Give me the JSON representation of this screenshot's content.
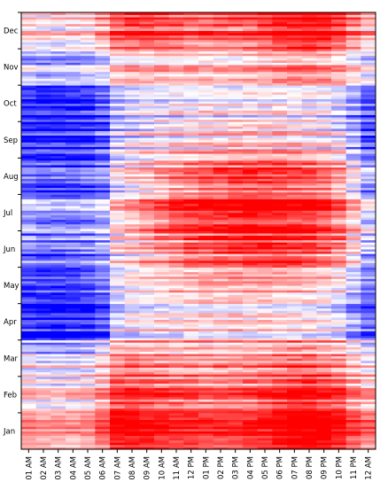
{
  "chart_data": {
    "type": "heatmap",
    "title": "",
    "xlabel": "",
    "ylabel": "",
    "x_categories": [
      "01 AM",
      "02 AM",
      "03 AM",
      "04 AM",
      "05 AM",
      "06 AM",
      "07 AM",
      "08 AM",
      "09 AM",
      "10 AM",
      "11 AM",
      "12 PM",
      "01 PM",
      "02 PM",
      "03 PM",
      "04 PM",
      "05 PM",
      "06 PM",
      "07 PM",
      "08 PM",
      "09 PM",
      "10 PM",
      "11 PM",
      "12 AM"
    ],
    "y_categories": [
      "Jan",
      "Feb",
      "Mar",
      "Apr",
      "May",
      "Jun",
      "Jul",
      "Aug",
      "Sep",
      "Oct",
      "Nov",
      "Dec"
    ],
    "y_order": "bottom-to-top",
    "colors": {
      "low": "#0000ff",
      "mid": "#ffffff",
      "high": "#ff0000"
    },
    "scale": [
      -1,
      1
    ],
    "grid": false,
    "monthly_hour_profile": [
      [
        0.3,
        0.25,
        0.2,
        0.2,
        0.25,
        0.45,
        0.8,
        0.85,
        0.8,
        0.75,
        0.7,
        0.7,
        0.65,
        0.65,
        0.65,
        0.7,
        0.75,
        0.85,
        0.95,
        0.95,
        0.9,
        0.8,
        0.55,
        0.4
      ],
      [
        0.2,
        0.15,
        0.15,
        0.15,
        0.2,
        0.4,
        0.75,
        0.8,
        0.75,
        0.7,
        0.65,
        0.65,
        0.6,
        0.6,
        0.6,
        0.65,
        0.7,
        0.8,
        0.9,
        0.9,
        0.85,
        0.75,
        0.5,
        0.35
      ],
      [
        0.05,
        0.0,
        0.0,
        0.0,
        0.05,
        0.25,
        0.55,
        0.6,
        0.55,
        0.5,
        0.45,
        0.45,
        0.45,
        0.45,
        0.45,
        0.5,
        0.55,
        0.6,
        0.65,
        0.65,
        0.6,
        0.5,
        0.3,
        0.15
      ],
      [
        -0.8,
        -0.85,
        -0.85,
        -0.85,
        -0.8,
        -0.65,
        -0.2,
        -0.05,
        0.0,
        0.05,
        0.05,
        0.1,
        0.1,
        0.1,
        0.1,
        0.1,
        0.1,
        0.1,
        0.1,
        0.05,
        0.0,
        -0.1,
        -0.35,
        -0.6
      ],
      [
        -0.75,
        -0.8,
        -0.8,
        -0.8,
        -0.75,
        -0.6,
        -0.15,
        0.0,
        0.05,
        0.1,
        0.15,
        0.15,
        0.2,
        0.2,
        0.2,
        0.2,
        0.2,
        0.15,
        0.15,
        0.1,
        0.05,
        -0.05,
        -0.3,
        -0.55
      ],
      [
        -0.6,
        -0.65,
        -0.65,
        -0.65,
        -0.6,
        -0.45,
        0.0,
        0.1,
        0.2,
        0.3,
        0.4,
        0.5,
        0.55,
        0.6,
        0.65,
        0.7,
        0.7,
        0.7,
        0.65,
        0.6,
        0.5,
        0.35,
        0.0,
        -0.35
      ],
      [
        -0.3,
        -0.4,
        -0.4,
        -0.4,
        -0.35,
        -0.2,
        0.15,
        0.3,
        0.45,
        0.6,
        0.75,
        0.8,
        0.85,
        0.9,
        0.95,
        0.95,
        0.95,
        0.95,
        0.9,
        0.85,
        0.75,
        0.6,
        0.25,
        -0.1
      ],
      [
        -0.65,
        -0.7,
        -0.7,
        -0.7,
        -0.65,
        -0.5,
        -0.05,
        0.05,
        0.15,
        0.3,
        0.4,
        0.5,
        0.55,
        0.6,
        0.65,
        0.7,
        0.7,
        0.7,
        0.65,
        0.6,
        0.5,
        0.35,
        0.0,
        -0.4
      ],
      [
        -0.8,
        -0.85,
        -0.85,
        -0.85,
        -0.8,
        -0.65,
        -0.2,
        -0.1,
        0.0,
        0.05,
        0.1,
        0.15,
        0.2,
        0.2,
        0.25,
        0.25,
        0.25,
        0.25,
        0.2,
        0.15,
        0.1,
        0.0,
        -0.3,
        -0.6
      ],
      [
        -0.9,
        -0.95,
        -0.95,
        -0.95,
        -0.9,
        -0.75,
        -0.4,
        -0.25,
        -0.2,
        -0.15,
        -0.1,
        -0.1,
        -0.05,
        -0.05,
        -0.05,
        -0.05,
        -0.05,
        -0.05,
        -0.1,
        -0.1,
        -0.15,
        -0.25,
        -0.5,
        -0.75
      ],
      [
        -0.3,
        -0.35,
        -0.35,
        -0.35,
        -0.3,
        -0.2,
        0.1,
        0.15,
        0.15,
        0.15,
        0.15,
        0.15,
        0.15,
        0.15,
        0.15,
        0.2,
        0.25,
        0.3,
        0.35,
        0.35,
        0.3,
        0.2,
        0.0,
        -0.15
      ],
      [
        0.1,
        0.05,
        0.05,
        0.05,
        0.1,
        0.3,
        0.6,
        0.7,
        0.7,
        0.65,
        0.6,
        0.55,
        0.55,
        0.55,
        0.55,
        0.6,
        0.7,
        0.85,
        0.9,
        0.9,
        0.85,
        0.7,
        0.45,
        0.25
      ]
    ]
  }
}
